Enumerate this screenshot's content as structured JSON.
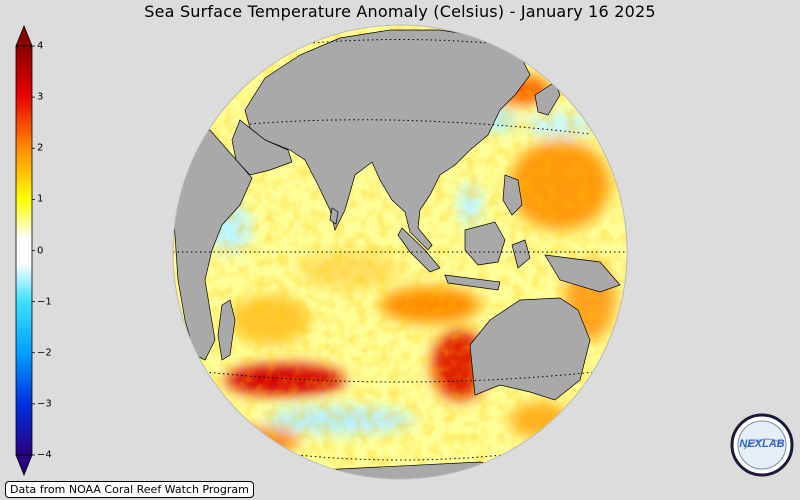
{
  "title": "Sea Surface Temperature Anomaly (Celsius) - January 16 2025",
  "colorbar": {
    "min": -4,
    "max": 4,
    "ticks": [
      "4",
      "3",
      "2",
      "1",
      "0",
      "−1",
      "−2",
      "−3",
      "−4"
    ],
    "colors": {
      "high_end": "#8b0000",
      "red": "#e60000",
      "orange": "#ff8c00",
      "yellow": "#ffff00",
      "zero": "#ffffff",
      "cyan": "#40e0ff",
      "blue": "#0050ff",
      "low_end": "#2a0080"
    }
  },
  "map": {
    "projection": "orthographic",
    "ocean_base_color": "#ffff99",
    "land_color": "#a9a9a9",
    "background_color": "#dcdcdc"
  },
  "credit": "Data from NOAA Coral Reef Watch Program",
  "logo": {
    "text": "NEXLAB",
    "icon": "nexlab-logo"
  }
}
